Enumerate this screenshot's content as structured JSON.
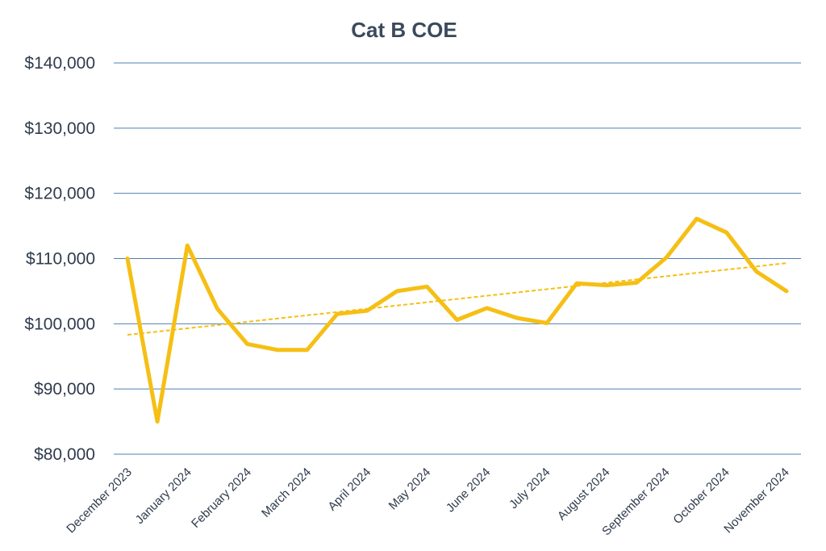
{
  "chart_data": {
    "type": "line",
    "title": "Cat B COE",
    "xlabel": "",
    "ylabel": "",
    "ylim": [
      80000,
      140000
    ],
    "y_ticks": [
      80000,
      90000,
      100000,
      110000,
      120000,
      130000,
      140000
    ],
    "y_tick_labels": [
      "$80,000",
      "$90,000",
      "$100,000",
      "$110,000",
      "$120,000",
      "$130,000",
      "$140,000"
    ],
    "x_tick_labels": [
      "December 2023",
      "January 2024",
      "February 2024",
      "March 2024",
      "April 2024",
      "May 2024",
      "June 2024",
      "July 2024",
      "August 2024",
      "September 2024",
      "October 2024",
      "November 2024"
    ],
    "grid": true,
    "legend": "none",
    "series": [
      {
        "color": "#f5bf14",
        "style": "solid",
        "values": [
          110000,
          85000,
          112000,
          102300,
          96900,
          96000,
          96000,
          101500,
          102000,
          105000,
          105700,
          100600,
          102400,
          100900,
          100100,
          106200,
          105900,
          106300,
          110200,
          116100,
          114000,
          108000,
          105000
        ]
      },
      {
        "color": "#f5bf14",
        "style": "dashed",
        "kind": "linear-trendline",
        "values": [
          98300,
          109300
        ]
      }
    ]
  }
}
